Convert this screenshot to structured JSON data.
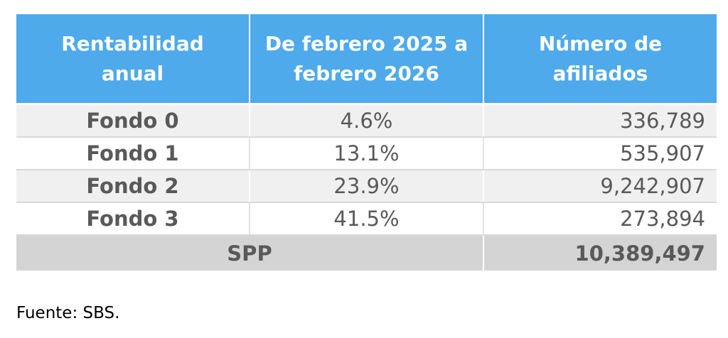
{
  "table": {
    "headers": [
      "Rentabilidad anual",
      "De febrero 2025 a febrero 2026",
      "Número de afiliados"
    ],
    "rows": [
      {
        "fondo": "Fondo 0",
        "rentabilidad": "4.6%",
        "afiliados": "336,789"
      },
      {
        "fondo": "Fondo 1",
        "rentabilidad": "13.1%",
        "afiliados": "535,907"
      },
      {
        "fondo": "Fondo 2",
        "rentabilidad": "23.9%",
        "afiliados": "9,242,907"
      },
      {
        "fondo": "Fondo 3",
        "rentabilidad": "41.5%",
        "afiliados": "273,894"
      }
    ],
    "total": {
      "label": "SPP",
      "afiliados": "10,389,497"
    }
  },
  "source": "Fuente: SBS.",
  "colors": {
    "header_bg": "#4eaaea",
    "header_text": "#ffffff",
    "body_text": "#595959",
    "stripe_bg": "#f0f0f0",
    "total_bg": "#d4d4d4"
  }
}
